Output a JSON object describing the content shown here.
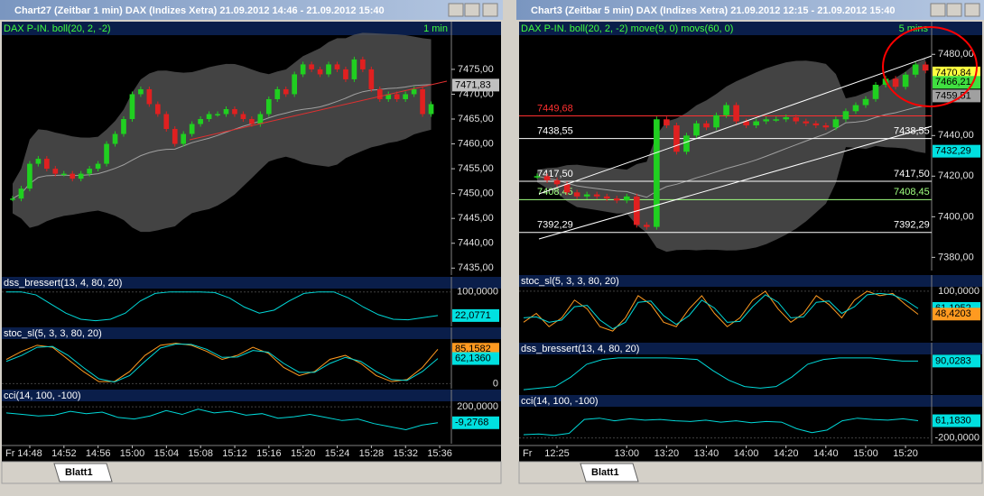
{
  "windows": [
    {
      "title": "Chart27 (Zeitbar 1 min)   DAX (Indizes Xetra)   21.09.2012 14:46 - 21.09.2012 15:40",
      "main": {
        "header": "DAX P-IN. boll(20, 2, -2)",
        "timeframe": "1 min",
        "ylim": [
          7433.6,
          7481.7
        ],
        "yticks": [
          {
            "value": 7435,
            "label": "7435,00"
          },
          {
            "value": 7440,
            "label": "7440,00"
          },
          {
            "value": 7445,
            "label": "7445,00"
          },
          {
            "value": 7450,
            "label": "7450,00"
          },
          {
            "value": 7455,
            "label": "7455,00"
          },
          {
            "value": 7460,
            "label": "7460,00"
          },
          {
            "value": 7465,
            "label": "7465,00"
          },
          {
            "value": 7470,
            "label": "7470,00"
          },
          {
            "value": 7475,
            "label": "7475,00"
          }
        ],
        "closes": [
          7449,
          7451,
          7456,
          7457,
          7455,
          7454,
          7454,
          7453,
          7454,
          7455,
          7456,
          7460,
          7462,
          7465,
          7470,
          7471,
          7468,
          7466,
          7463,
          7460,
          7462,
          7464,
          7465,
          7466,
          7466,
          7467,
          7466,
          7465,
          7464,
          7466,
          7469,
          7471,
          7470,
          7474,
          7476,
          7475,
          7474,
          7476,
          7475,
          7473,
          7477,
          7475,
          7471,
          7469,
          7470,
          7469,
          7470,
          7471,
          7466,
          7468
        ],
        "markers": [
          {
            "value": 7471.83,
            "label": "7471,83",
            "color": "#c0c0c0"
          }
        ],
        "levels": []
      },
      "panels": [
        {
          "name": "dss_bressert(13, 4, 80, 20)",
          "ylim": [
            -8,
            108
          ],
          "ticks": [
            {
              "value": 100,
              "label": "100,0000"
            }
          ],
          "markers": [
            {
              "value": 22.0771,
              "label": "22,0771",
              "color": "#00e0e0"
            }
          ],
          "lines": [
            {
              "color": "#00d8d8",
              "values": [
                100,
                100,
                90,
                60,
                30,
                10,
                5,
                10,
                30,
                70,
                95,
                100,
                100,
                100,
                98,
                80,
                50,
                30,
                40,
                70,
                95,
                100,
                100,
                80,
                50,
                25,
                10,
                8,
                15,
                22
              ]
            }
          ]
        },
        {
          "name": "stoc_sl(5, 3, 3, 80, 20)",
          "ylim": [
            -8,
            108
          ],
          "ticks": [
            0
          ],
          "markers": [
            {
              "value": 85.1582,
              "label": "85,1582",
              "color": "#ff9a20"
            },
            {
              "value": 62.136,
              "label": "62,1360",
              "color": "#00e0e0"
            }
          ],
          "lines": [
            {
              "color": "#ff9a20",
              "values": [
                60,
                80,
                95,
                90,
                60,
                30,
                5,
                5,
                30,
                70,
                95,
                100,
                95,
                80,
                60,
                70,
                90,
                75,
                40,
                20,
                30,
                60,
                70,
                50,
                20,
                5,
                10,
                40,
                85
              ]
            },
            {
              "color": "#00d8d8",
              "values": [
                55,
                70,
                90,
                92,
                70,
                40,
                12,
                4,
                20,
                55,
                88,
                98,
                97,
                85,
                65,
                66,
                82,
                78,
                50,
                28,
                28,
                50,
                65,
                55,
                30,
                10,
                8,
                30,
                62
              ]
            }
          ]
        },
        {
          "name": "cci(14, 100, -100)",
          "ylim": [
            -260,
            260
          ],
          "ticks": [
            {
              "value": 200,
              "label": "200,0000"
            }
          ],
          "markers": [
            {
              "value": -9.2768,
              "label": "-9,2768",
              "color": "#00e0e0"
            }
          ],
          "lines": [
            {
              "color": "#00d8d8",
              "values": [
                120,
                100,
                80,
                90,
                140,
                110,
                130,
                60,
                40,
                80,
                150,
                100,
                170,
                120,
                140,
                90,
                110,
                50,
                70,
                100,
                60,
                20,
                40,
                -20,
                -60,
                -100,
                -40,
                -9.2768
              ]
            }
          ]
        }
      ],
      "day": "Fr",
      "times": [
        "14:48",
        "14:52",
        "14:56",
        "15:00",
        "15:04",
        "15:08",
        "15:12",
        "15:16",
        "15:20",
        "15:24",
        "15:28",
        "15:32",
        "15:36"
      ],
      "tab": "Blatt1"
    },
    {
      "title": "Chart3 (Zeitbar 5 min)   DAX (Indizes Xetra)   21.09.2012 12:15 - 21.09.2012 15:40",
      "main": {
        "header": "DAX P-IN. boll(20, 2, -2) move(9, 0) movs(60, 0)",
        "timeframe": "5 mins",
        "ylim": [
          7373.5,
          7489
        ],
        "yticks": [
          {
            "value": 7380,
            "label": "7380,00"
          },
          {
            "value": 7400,
            "label": "7400,00"
          },
          {
            "value": 7420,
            "label": "7420,00"
          },
          {
            "value": 7440,
            "label": "7440,00"
          },
          {
            "value": 7480,
            "label": "7480,00"
          }
        ],
        "closes": [
          7420,
          7418,
          7416,
          7412,
          7410,
          7411,
          7410,
          7409,
          7408,
          7410,
          7396,
          7395,
          7448,
          7445,
          7432,
          7440,
          7446,
          7444,
          7450,
          7455,
          7447,
          7445,
          7447,
          7448,
          7448,
          7449,
          7447,
          7446,
          7445,
          7444,
          7448,
          7452,
          7455,
          7458,
          7465,
          7468,
          7464,
          7470,
          7475,
          7472
        ],
        "markers": [
          {
            "value": 7470.84,
            "label": "7470,84",
            "color": "#ffff40"
          },
          {
            "value": 7466.21,
            "label": "7466,21",
            "color": "#40e040"
          },
          {
            "value": 7459.51,
            "label": "7459,51",
            "color": "#a0a0a0"
          },
          {
            "value": 7432.29,
            "label": "7432,29",
            "color": "#00e0e0"
          }
        ],
        "levels": [
          {
            "value": 7449.68,
            "label": "7449,68",
            "color": "#ff3030",
            "both": false
          },
          {
            "value": 7438.55,
            "label": "7438,55",
            "color": "#ffffff",
            "both": true
          },
          {
            "value": 7417.5,
            "label": "7417,50",
            "color": "#ffffff",
            "both": true
          },
          {
            "value": 7408.45,
            "label": "7408,45",
            "color": "#a0ff80",
            "both": true
          },
          {
            "value": 7392.29,
            "label": "7392,29",
            "color": "#ffffff",
            "both": true
          }
        ]
      },
      "panels": [
        {
          "name": "stoc_sl(5, 3, 3, 80, 20)",
          "ylim": [
            -8,
            108
          ],
          "ticks": [
            {
              "value": 100,
              "label": "100,0000"
            }
          ],
          "markers": [
            {
              "value": 61.1952,
              "label": "61,1952",
              "color": "#00e0e0"
            },
            {
              "value": 48.4203,
              "label": "48,4203",
              "color": "#ff9a20"
            }
          ],
          "lines": [
            {
              "color": "#ff9a20",
              "values": [
                30,
                50,
                20,
                40,
                80,
                60,
                20,
                10,
                40,
                90,
                70,
                30,
                20,
                60,
                90,
                50,
                20,
                40,
                80,
                100,
                60,
                30,
                50,
                90,
                70,
                40,
                80,
                100,
                90,
                95,
                70,
                48
              ]
            },
            {
              "color": "#00d8d8",
              "values": [
                40,
                42,
                30,
                35,
                65,
                68,
                35,
                15,
                30,
                75,
                78,
                45,
                25,
                45,
                80,
                62,
                30,
                32,
                65,
                92,
                75,
                40,
                42,
                75,
                78,
                50,
                65,
                92,
                95,
                92,
                80,
                61
              ]
            }
          ]
        },
        {
          "name": "dss_bressert(13, 4, 80, 20)",
          "ylim": [
            -8,
            108
          ],
          "ticks": [],
          "markers": [
            {
              "value": 90.0283,
              "label": "90,0283",
              "color": "#00e0e0"
            }
          ],
          "lines": [
            {
              "color": "#00d8d8",
              "values": [
                0,
                5,
                10,
                40,
                80,
                95,
                100,
                100,
                100,
                100,
                98,
                95,
                60,
                30,
                10,
                5,
                10,
                40,
                80,
                95,
                100,
                100,
                100,
                95,
                90,
                90
              ]
            }
          ]
        },
        {
          "name": "cci(14, 100, -100)",
          "ylim": [
            -260,
            260
          ],
          "ticks": [
            {
              "value": -200,
              "label": "-200,0000"
            }
          ],
          "markers": [
            {
              "value": 61.183,
              "label": "61,1830",
              "color": "#00e0e0"
            }
          ],
          "lines": [
            {
              "color": "#00d8d8",
              "values": [
                -150,
                -140,
                -160,
                -130,
                80,
                100,
                60,
                90,
                70,
                80,
                60,
                50,
                70,
                40,
                60,
                30,
                50,
                40,
                -60,
                -120,
                -80,
                60,
                100,
                80,
                70,
                90,
                61.183
              ]
            }
          ]
        }
      ],
      "day": "Fr",
      "times": [
        "12:25",
        "13:00",
        "13:20",
        "13:40",
        "14:00",
        "14:20",
        "14:40",
        "15:00",
        "15:20"
      ],
      "tab": "Blatt1"
    }
  ]
}
